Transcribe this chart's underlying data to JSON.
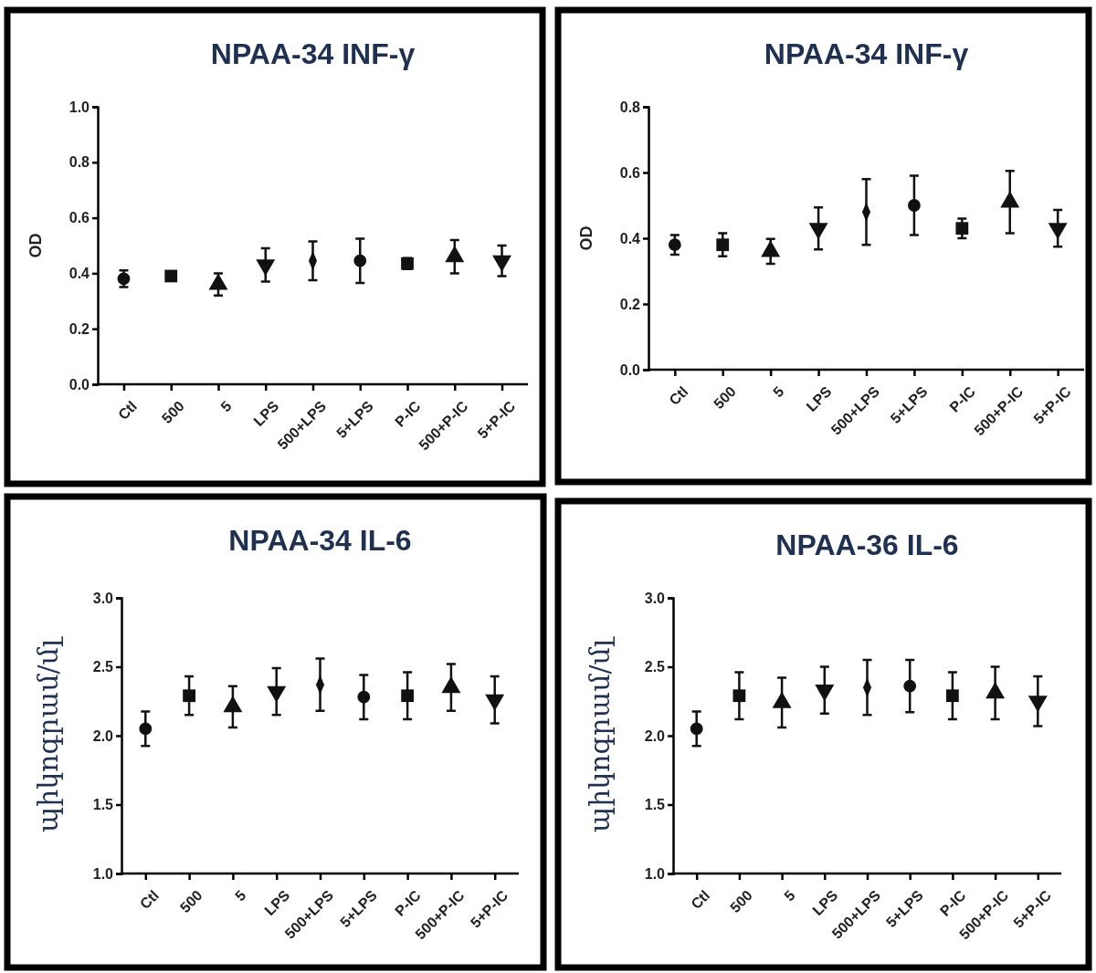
{
  "chart_data": [
    {
      "type": "scatter",
      "title": "NPAA-34 INF-γ",
      "ylabel": "OD",
      "categories": [
        "Ctl",
        "500",
        "5",
        "LPS",
        "500+LPS",
        "5+LPS",
        "P-IC",
        "500+P-IC",
        "5+P-IC"
      ],
      "ylim": [
        0,
        1
      ],
      "yticks": [
        {
          "value": 0,
          "label": "0.0"
        },
        0.2,
        0.4,
        0.6,
        0.8,
        {
          "value": 1,
          "label": "1.0"
        }
      ],
      "grid": false,
      "series": [
        {
          "color": "#111111",
          "marker": "circle",
          "values": [
            0.38,
            null,
            null,
            null,
            null,
            0.445,
            null,
            null,
            null
          ],
          "errors": [
            0.03,
            null,
            null,
            null,
            null,
            0.08,
            null,
            null,
            null
          ]
        },
        {
          "color": "#111111",
          "marker": "square",
          "values": [
            null,
            0.39,
            null,
            null,
            null,
            null,
            0.435,
            null,
            null
          ],
          "errors": [
            null,
            null,
            null,
            null,
            null,
            null,
            0.02,
            null,
            null
          ]
        },
        {
          "color": "#111111",
          "marker": "triangle",
          "values": [
            null,
            null,
            0.36,
            null,
            null,
            null,
            null,
            0.46,
            null
          ],
          "errors": [
            null,
            null,
            0.04,
            null,
            null,
            null,
            null,
            0.06,
            null
          ]
        },
        {
          "color": "#111111",
          "values": [
            null,
            null,
            null,
            0.43,
            null,
            null,
            null,
            null,
            0.445
          ],
          "errors": [
            null,
            null,
            null,
            0.06,
            null,
            null,
            null,
            null,
            0.055
          ]
        },
        {
          "color": "#111111",
          "marker": "diamond",
          "values": [
            null,
            null,
            null,
            null,
            0.445,
            null,
            null,
            null,
            null
          ],
          "errors": [
            null,
            null,
            null,
            null,
            0.07,
            null,
            null,
            null,
            null
          ]
        }
      ]
    },
    {
      "type": "scatter",
      "title": "NPAA-34 INF-γ",
      "ylabel": "OD",
      "categories": [
        "Ctl",
        "500",
        "5",
        "LPS",
        "500+LPS",
        "5+LPS",
        "P-IC",
        "500+P-IC",
        "5+P-IC"
      ],
      "ylim": [
        0,
        0.8
      ],
      "yticks": [
        {
          "value": 0,
          "label": "0.0"
        },
        0.2,
        0.4,
        0.6,
        0.8
      ],
      "grid": false,
      "series": [
        {
          "color": "#111111",
          "marker": "circle",
          "values": [
            0.38,
            null,
            null,
            null,
            null,
            0.5,
            null,
            null,
            null
          ],
          "errors": [
            0.03,
            null,
            null,
            null,
            null,
            0.09,
            null,
            null,
            null
          ]
        },
        {
          "color": "#111111",
          "marker": "square",
          "values": [
            null,
            0.38,
            null,
            null,
            null,
            null,
            0.43,
            null,
            null
          ],
          "errors": [
            null,
            0.035,
            null,
            null,
            null,
            null,
            0.03,
            null,
            null
          ]
        },
        {
          "color": "#111111",
          "marker": "triangle",
          "values": [
            null,
            null,
            0.36,
            null,
            null,
            null,
            null,
            0.51,
            null
          ],
          "errors": [
            null,
            null,
            0.038,
            null,
            null,
            null,
            null,
            0.095,
            null
          ]
        },
        {
          "color": "#111111",
          "values": [
            null,
            null,
            null,
            0.43,
            null,
            null,
            null,
            null,
            0.43
          ],
          "errors": [
            null,
            null,
            null,
            0.064,
            null,
            null,
            null,
            null,
            0.056
          ]
        },
        {
          "color": "#111111",
          "marker": "diamond",
          "values": [
            null,
            null,
            null,
            null,
            0.48,
            null,
            null,
            null,
            null
          ],
          "errors": [
            null,
            null,
            null,
            null,
            0.1,
            null,
            null,
            null,
            null
          ]
        }
      ]
    },
    {
      "type": "scatter",
      "title": "NPAA-34 IL-6",
      "ylabel": "պիկոգրամ/մլ",
      "categories": [
        "Ctl",
        "500",
        "5",
        "LPS",
        "500+LPS",
        "5+LPS",
        "P-IC",
        "500+P-IC",
        "5+P-IC"
      ],
      "ylim": [
        1,
        3
      ],
      "yticks": [
        {
          "value": 1,
          "label": "1.0"
        },
        1.5,
        {
          "value": 2,
          "label": "2.0"
        },
        2.5,
        {
          "value": 3,
          "label": "3.0"
        }
      ],
      "grid": false,
      "series": [
        {
          "color": "#111111",
          "marker": "circle",
          "values": [
            2.05,
            null,
            null,
            null,
            null,
            2.28,
            null,
            null,
            null
          ],
          "errors": [
            0.125,
            null,
            null,
            null,
            null,
            0.16,
            null,
            null,
            null
          ]
        },
        {
          "color": "#111111",
          "marker": "square",
          "values": [
            null,
            2.29,
            null,
            null,
            null,
            null,
            2.29,
            null,
            null
          ],
          "errors": [
            null,
            0.14,
            null,
            null,
            null,
            null,
            0.17,
            null,
            null
          ]
        },
        {
          "color": "#111111",
          "marker": "triangle",
          "values": [
            null,
            null,
            2.21,
            null,
            null,
            null,
            null,
            2.35,
            null
          ],
          "errors": [
            null,
            null,
            0.15,
            null,
            null,
            null,
            null,
            0.17,
            null
          ]
        },
        {
          "color": "#111111",
          "values": [
            null,
            null,
            null,
            2.32,
            null,
            null,
            null,
            null,
            2.26
          ],
          "errors": [
            null,
            null,
            null,
            0.17,
            null,
            null,
            null,
            null,
            0.17
          ]
        },
        {
          "color": "#111111",
          "marker": "diamond",
          "values": [
            null,
            null,
            null,
            null,
            2.37,
            null,
            null,
            null,
            null
          ],
          "errors": [
            null,
            null,
            null,
            null,
            0.19,
            null,
            null,
            null,
            null
          ]
        }
      ]
    },
    {
      "type": "scatter",
      "title": "NPAA-36 IL-6",
      "ylabel": "պիկոգրամ/մլ",
      "categories": [
        "Ctl",
        "500",
        "5",
        "LPS",
        "500+LPS",
        "5+LPS",
        "P-IC",
        "500+P-IC",
        "5+P-IC"
      ],
      "ylim": [
        1,
        3
      ],
      "yticks": [
        {
          "value": 1,
          "label": "1.0"
        },
        1.5,
        {
          "value": 2,
          "label": "2.0"
        },
        2.5,
        {
          "value": 3,
          "label": "3.0"
        }
      ],
      "grid": false,
      "series": [
        {
          "color": "#111111",
          "marker": "circle",
          "values": [
            2.05,
            null,
            null,
            null,
            null,
            2.36,
            null,
            null,
            null
          ],
          "errors": [
            0.125,
            null,
            null,
            null,
            null,
            0.19,
            null,
            null,
            null
          ]
        },
        {
          "color": "#111111",
          "marker": "square",
          "values": [
            null,
            2.29,
            null,
            null,
            null,
            null,
            2.29,
            null,
            null
          ],
          "errors": [
            null,
            0.17,
            null,
            null,
            null,
            null,
            0.17,
            null,
            null
          ]
        },
        {
          "color": "#111111",
          "marker": "triangle",
          "values": [
            null,
            null,
            2.24,
            null,
            null,
            null,
            null,
            2.31,
            null
          ],
          "errors": [
            null,
            null,
            0.18,
            null,
            null,
            null,
            null,
            0.19,
            null
          ]
        },
        {
          "color": "#111111",
          "values": [
            null,
            null,
            null,
            2.33,
            null,
            null,
            null,
            null,
            2.25
          ],
          "errors": [
            null,
            null,
            null,
            0.17,
            null,
            null,
            null,
            null,
            0.18
          ]
        },
        {
          "color": "#111111",
          "marker": "diamond",
          "values": [
            null,
            null,
            null,
            null,
            2.35,
            null,
            null,
            null,
            null
          ],
          "errors": [
            null,
            null,
            null,
            null,
            0.2,
            null,
            null,
            null,
            null
          ]
        }
      ]
    }
  ]
}
